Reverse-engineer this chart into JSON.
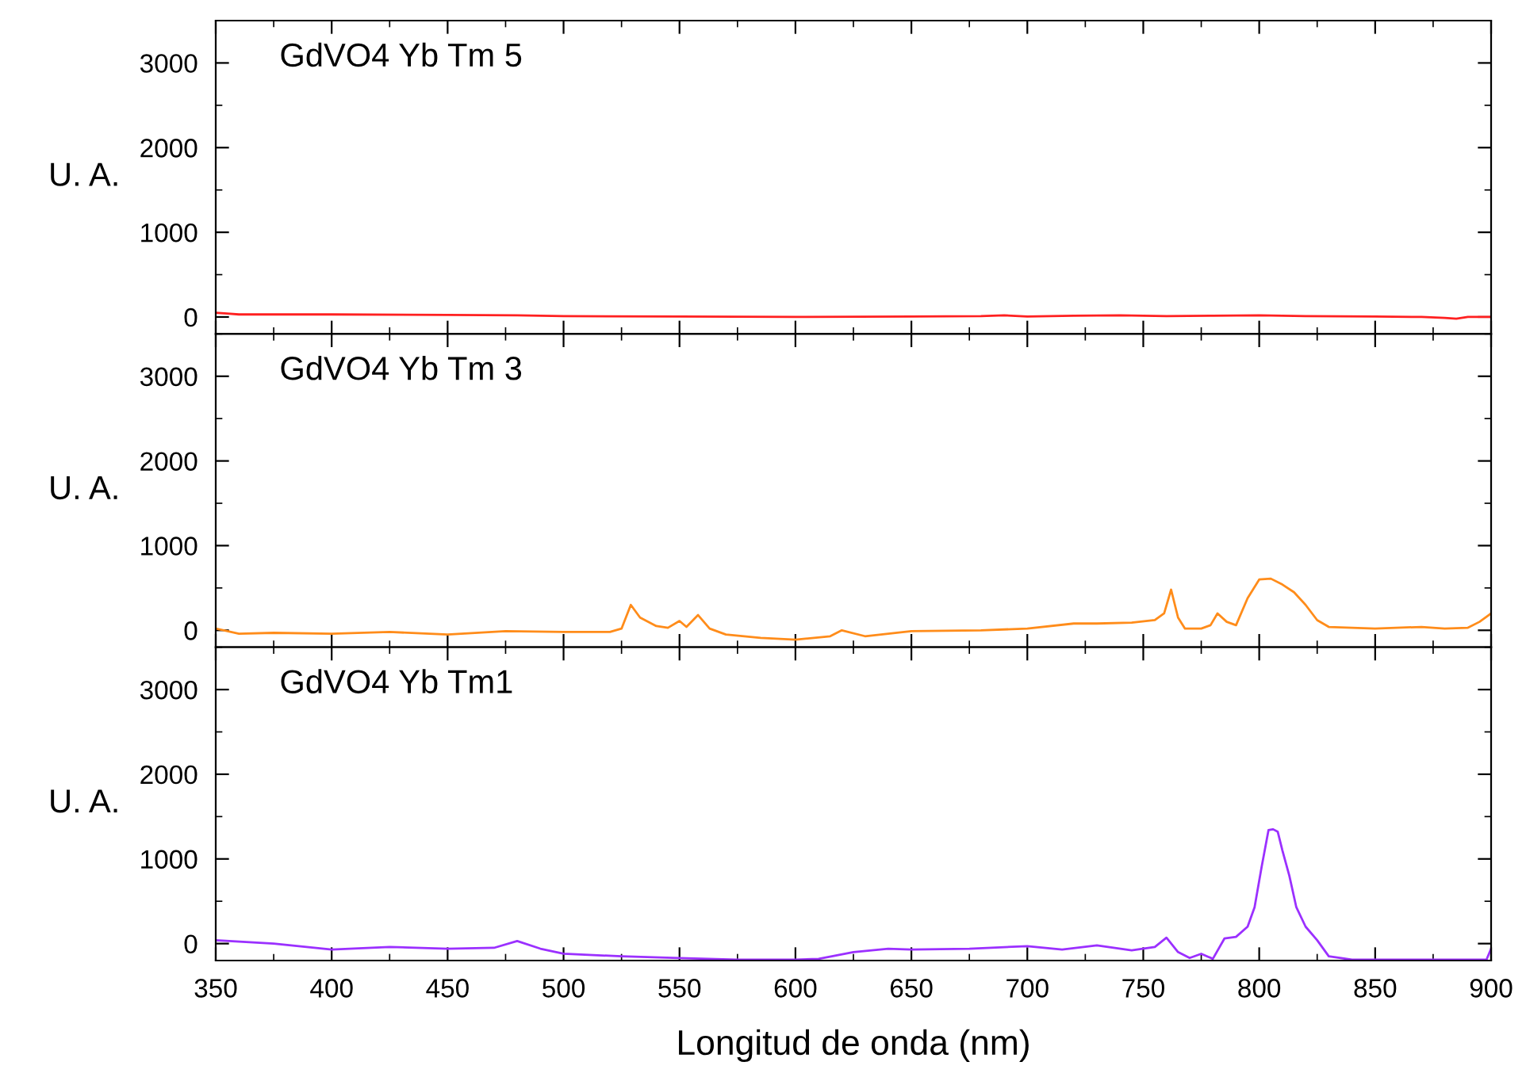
{
  "chart_data": [
    {
      "type": "line",
      "title": "GdVO4 Yb Tm 5",
      "ylabel": "U. A.",
      "xlim": [
        350,
        900
      ],
      "xticks": [
        350,
        400,
        450,
        500,
        550,
        600,
        650,
        700,
        750,
        800,
        850,
        900
      ],
      "ylim": [
        -200,
        3500
      ],
      "yticks": [
        0,
        1000,
        2000,
        3000
      ],
      "grid": false,
      "tick_labels": "y",
      "series": [
        {
          "color": "#ff2020",
          "x": [
            350,
            355,
            360,
            400,
            450,
            480,
            500,
            550,
            600,
            650,
            680,
            690,
            700,
            720,
            740,
            760,
            780,
            800,
            820,
            850,
            870,
            880,
            885,
            890,
            900
          ],
          "values": [
            50,
            40,
            30,
            30,
            25,
            20,
            10,
            5,
            0,
            5,
            10,
            20,
            5,
            15,
            20,
            10,
            15,
            20,
            10,
            5,
            0,
            -10,
            -20,
            0,
            0
          ]
        }
      ]
    },
    {
      "type": "line",
      "title": "GdVO4 Yb Tm 3",
      "ylabel": "U. A.",
      "xlim": [
        350,
        900
      ],
      "xticks": [
        350,
        400,
        450,
        500,
        550,
        600,
        650,
        700,
        750,
        800,
        850,
        900
      ],
      "ylim": [
        -200,
        3500
      ],
      "yticks": [
        0,
        1000,
        2000,
        3000
      ],
      "grid": false,
      "tick_labels": "y",
      "series": [
        {
          "color": "#ff8c1a",
          "x": [
            350,
            360,
            375,
            400,
            425,
            450,
            475,
            500,
            520,
            525,
            529,
            533,
            540,
            545,
            550,
            553,
            558,
            563,
            570,
            585,
            600,
            615,
            620,
            630,
            650,
            680,
            700,
            720,
            730,
            745,
            755,
            759,
            762,
            765,
            768,
            775,
            779,
            782,
            786,
            790,
            795,
            800,
            805,
            810,
            815,
            820,
            825,
            830,
            840,
            850,
            870,
            880,
            890,
            895,
            900
          ],
          "values": [
            20,
            -40,
            -30,
            -40,
            -20,
            -50,
            -10,
            -20,
            -20,
            20,
            300,
            150,
            50,
            30,
            110,
            40,
            180,
            20,
            -50,
            -90,
            -110,
            -70,
            0,
            -70,
            -10,
            0,
            20,
            80,
            80,
            90,
            120,
            200,
            480,
            150,
            20,
            20,
            60,
            200,
            100,
            60,
            380,
            600,
            610,
            540,
            450,
            300,
            120,
            40,
            30,
            20,
            40,
            20,
            30,
            100,
            200
          ]
        }
      ]
    },
    {
      "type": "line",
      "title": "GdVO4 Yb Tm1",
      "ylabel": "U. A.",
      "xlabel": "Longitud de onda (nm)",
      "xlim": [
        350,
        900
      ],
      "xticks": [
        350,
        400,
        450,
        500,
        550,
        600,
        650,
        700,
        750,
        800,
        850,
        900
      ],
      "ylim": [
        -200,
        3500
      ],
      "yticks": [
        0,
        1000,
        2000,
        3000
      ],
      "grid": false,
      "series": [
        {
          "color": "#9b30ff",
          "x": [
            350,
            375,
            400,
            425,
            450,
            470,
            480,
            490,
            500,
            525,
            550,
            575,
            600,
            610,
            625,
            640,
            650,
            675,
            700,
            715,
            730,
            745,
            755,
            760,
            765,
            770,
            775,
            780,
            785,
            790,
            795,
            798,
            801,
            804,
            806,
            808,
            810,
            813,
            816,
            820,
            825,
            830,
            840,
            850,
            870,
            898,
            900
          ],
          "values": [
            40,
            0,
            -70,
            -40,
            -60,
            -50,
            30,
            -60,
            -120,
            -150,
            -170,
            -190,
            -190,
            -180,
            -100,
            -60,
            -70,
            -60,
            -30,
            -70,
            -20,
            -80,
            -40,
            70,
            -100,
            -170,
            -120,
            -180,
            60,
            80,
            200,
            430,
            900,
            1340,
            1350,
            1320,
            1100,
            800,
            430,
            200,
            40,
            -150,
            -190,
            -190,
            -190,
            -190,
            -60
          ]
        }
      ]
    }
  ]
}
